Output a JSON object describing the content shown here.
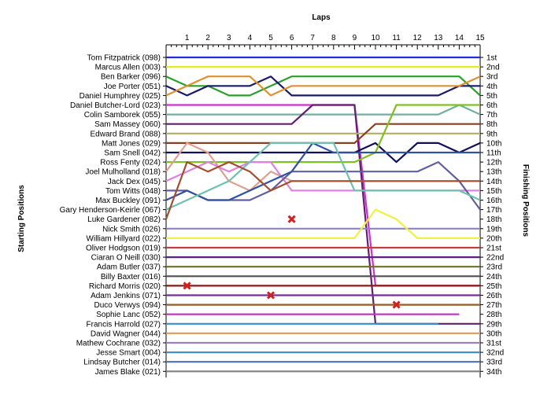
{
  "chart_data": {
    "type": "line",
    "title": "",
    "x_title": "Laps",
    "left_axis_title": "Starting Positions",
    "right_axis_title": "Finishing Positions",
    "laps": [
      1,
      2,
      3,
      4,
      5,
      6,
      7,
      8,
      9,
      10,
      11,
      12,
      13,
      14,
      15
    ],
    "x_range": [
      0,
      15
    ],
    "y_range": [
      1,
      34
    ],
    "y_inverted": true,
    "grid": false,
    "finishing_labels": [
      "1st",
      "2nd",
      "3rd",
      "4th",
      "5th",
      "6th",
      "7th",
      "8th",
      "9th",
      "10th",
      "11th",
      "12th",
      "13th",
      "14th",
      "15th",
      "16th",
      "17th",
      "18th",
      "19th",
      "20th",
      "21st",
      "22nd",
      "23rd",
      "24th",
      "25th",
      "26th",
      "27th",
      "28th",
      "29th",
      "30th",
      "31st",
      "32nd",
      "33rd",
      "34th"
    ],
    "series": [
      {
        "name": "Tom Fitzpatrick (098)",
        "color": "#2a2ad0",
        "positions": [
          1,
          1,
          1,
          1,
          1,
          1,
          1,
          1,
          1,
          1,
          1,
          1,
          1,
          1,
          1,
          1
        ]
      },
      {
        "name": "Marcus Allen (003)",
        "color": "#e8e82a",
        "positions": [
          2,
          2,
          2,
          2,
          2,
          2,
          2,
          2,
          2,
          2,
          2,
          2,
          2,
          2,
          2,
          2
        ]
      },
      {
        "name": "Ben Barker (096)",
        "color": "#2aa02a",
        "positions": [
          3,
          4,
          4,
          5,
          5,
          4,
          3,
          3,
          3,
          3,
          3,
          3,
          3,
          3,
          3,
          5
        ]
      },
      {
        "name": "Joe Porter (051)",
        "color": "#1a1a6a",
        "positions": [
          4,
          5,
          4,
          4,
          4,
          3,
          5,
          5,
          5,
          5,
          5,
          5,
          5,
          5,
          4,
          4
        ]
      },
      {
        "name": "Daniel Humphrey (025)",
        "color": "#e09030",
        "positions": [
          5,
          4,
          3,
          3,
          3,
          5,
          4,
          4,
          4,
          4,
          4,
          4,
          4,
          4,
          4,
          3
        ]
      },
      {
        "name": "Daniel Butcher-Lord (023)",
        "color": "#d030d0",
        "positions": [
          6,
          6,
          6,
          6,
          6,
          6,
          6,
          6,
          6,
          6,
          25,
          25,
          25,
          25,
          25,
          25
        ]
      },
      {
        "name": "Colin Samborek (055)",
        "color": "#70b0a0",
        "positions": [
          7,
          7,
          7,
          7,
          7,
          7,
          7,
          7,
          7,
          7,
          7,
          7,
          7,
          7,
          6,
          7
        ]
      },
      {
        "name": "Sam Massey (060)",
        "color": "#602070",
        "positions": [
          8,
          8,
          8,
          8,
          8,
          8,
          8,
          6,
          6,
          6,
          29,
          29,
          29,
          29,
          29,
          29
        ]
      },
      {
        "name": "Edward Brand (088)",
        "color": "#b0b060",
        "positions": [
          9,
          9,
          9,
          9,
          9,
          9,
          9,
          9,
          9,
          9,
          9,
          9,
          9,
          9,
          9,
          9
        ]
      },
      {
        "name": "Matt Jones (029)",
        "color": "#8a4020",
        "positions": [
          10,
          10,
          10,
          10,
          10,
          10,
          10,
          10,
          10,
          10,
          8,
          8,
          8,
          8,
          8,
          8
        ]
      },
      {
        "name": "Sam Snell (042)",
        "color": "#10105a",
        "positions": [
          11,
          11,
          11,
          11,
          11,
          11,
          11,
          11,
          11,
          11,
          10,
          12,
          10,
          10,
          11,
          10
        ]
      },
      {
        "name": "Ross Fenty (024)",
        "color": "#80c020",
        "positions": [
          12,
          12,
          12,
          12,
          12,
          12,
          12,
          12,
          12,
          12,
          11,
          6,
          6,
          6,
          6,
          6
        ]
      },
      {
        "name": "Joel Mulholland (018)",
        "color": "#e0a090",
        "positions": [
          13,
          10,
          11,
          14,
          15,
          13,
          14,
          14,
          14,
          14,
          14,
          14,
          14,
          14,
          14,
          14
        ]
      },
      {
        "name": "Jack Dex (045)",
        "color": "#e080e0",
        "positions": [
          14,
          13,
          12,
          13,
          12,
          12,
          15,
          15,
          15,
          15,
          15,
          15,
          15,
          15,
          15,
          15
        ]
      },
      {
        "name": "Tom Witts (048)",
        "color": "#6060a0",
        "positions": [
          15,
          15,
          16,
          16,
          16,
          15,
          13,
          13,
          13,
          13,
          13,
          13,
          13,
          12,
          14,
          17
        ]
      },
      {
        "name": "Max Buckley (091)",
        "color": "#3050a0",
        "positions": [
          16,
          15,
          16,
          16,
          15,
          14,
          13,
          10,
          11,
          11,
          11,
          11,
          11,
          11,
          11,
          11
        ]
      },
      {
        "name": "Gary Henderson-Keirle (067)",
        "color": "#70c0b0",
        "positions": [
          17,
          16,
          15,
          14,
          12,
          10,
          10,
          10,
          10,
          15,
          15,
          15,
          15,
          15,
          15,
          16
        ]
      },
      {
        "name": "Luke Gardener (082)",
        "color": "#a05030",
        "positions": [
          18,
          12,
          13,
          12,
          13,
          15,
          14,
          14,
          14,
          14,
          14,
          14,
          14,
          14,
          14,
          14
        ]
      },
      {
        "name": "Nick Smith (026)",
        "color": "#9080c0",
        "positions": [
          19,
          19,
          19,
          19,
          19,
          19,
          19,
          19,
          19,
          19,
          19,
          19,
          19,
          19,
          19,
          19
        ]
      },
      {
        "name": "William Hillyard (022)",
        "color": "#f0f040",
        "positions": [
          20,
          20,
          20,
          20,
          20,
          20,
          20,
          20,
          20,
          20,
          17,
          18,
          20,
          20,
          20,
          20
        ]
      },
      {
        "name": "Oliver Hodgson (019)",
        "color": "#c04040",
        "positions": [
          21,
          21,
          21,
          21,
          21,
          21,
          21,
          21,
          21,
          21,
          21,
          21,
          21,
          21,
          21,
          21
        ]
      },
      {
        "name": "Ciaran O Neill (030)",
        "color": "#602080",
        "positions": [
          22,
          22,
          22,
          22,
          22,
          22,
          22,
          22,
          22,
          22,
          22,
          22,
          22,
          22,
          22,
          22
        ]
      },
      {
        "name": "Adam Butler (037)",
        "color": "#707020",
        "positions": [
          23,
          23,
          23,
          23,
          23,
          23,
          23,
          23,
          23,
          23,
          23,
          23,
          23,
          23,
          23,
          23
        ]
      },
      {
        "name": "Billy Baxter (016)",
        "color": "#505050",
        "positions": [
          24,
          24,
          24,
          24,
          24,
          24,
          24,
          24,
          24,
          24,
          24,
          24,
          24,
          24,
          24,
          24
        ]
      },
      {
        "name": "Richard Morris (020)",
        "color": "#8a1a1a",
        "positions": [
          25,
          25,
          25,
          25,
          25,
          25,
          25,
          25,
          25,
          25,
          25,
          25,
          25,
          25,
          25,
          25
        ]
      },
      {
        "name": "Adam Jenkins (071)",
        "color": "#7a2a9a",
        "positions": [
          26,
          26,
          26,
          26,
          26,
          26,
          26,
          26,
          26,
          26,
          26,
          26,
          26,
          26,
          26,
          26
        ]
      },
      {
        "name": "Duco Verwys (094)",
        "color": "#9a5a20",
        "positions": [
          27,
          27,
          27,
          27,
          27,
          27,
          27,
          27,
          27,
          27,
          27,
          27,
          27,
          27,
          27,
          27
        ]
      },
      {
        "name": "Sophie Lanc (052)",
        "color": "#c030c0",
        "positions": [
          28,
          28,
          28,
          28,
          28,
          28,
          28,
          28,
          28,
          28,
          28,
          28,
          28,
          28,
          28
        ]
      },
      {
        "name": "Francis Harrold (027)",
        "color": "#3090d0",
        "positions": [
          29,
          29,
          29,
          29,
          29,
          29,
          29,
          29,
          29,
          29,
          29,
          29,
          29,
          29
        ]
      },
      {
        "name": "David Wagner (044)",
        "color": "#e0a060",
        "positions": [
          30,
          30,
          30,
          30,
          30,
          30,
          30,
          30,
          30,
          30,
          30,
          30,
          30,
          30,
          30,
          30
        ]
      },
      {
        "name": "Mathew Cochrane (032)",
        "color": "#a080c0",
        "positions": [
          31,
          31,
          31,
          31,
          31,
          31,
          31,
          31,
          31,
          31,
          31,
          31,
          31,
          31,
          31,
          31
        ]
      },
      {
        "name": "Jesse Smart (004)",
        "color": "#4090d0",
        "positions": [
          32,
          32,
          32,
          32,
          32,
          32,
          32,
          32,
          32,
          32,
          32,
          32,
          32,
          32,
          32,
          32
        ]
      },
      {
        "name": "Lindsay Butcher (014)",
        "color": "#5070b0",
        "positions": [
          33,
          33,
          33,
          33,
          33,
          33,
          33,
          33,
          33,
          33,
          33,
          33,
          33,
          33,
          33,
          33
        ]
      },
      {
        "name": "James Blake (021)",
        "color": "#808080",
        "positions": [
          34,
          34,
          34,
          34,
          34,
          34,
          34,
          34,
          34,
          34,
          34,
          34,
          34,
          34,
          34,
          34
        ]
      }
    ],
    "retirements": [
      {
        "driver": "Richard Morris (020)",
        "lap": 1,
        "position": 25
      },
      {
        "driver": "Adam Jenkins (071)",
        "lap": 5,
        "position": 26
      },
      {
        "driver": "Luke Gardener (082)",
        "lap": 6,
        "position": 18
      },
      {
        "driver": "Duco Verwys (094)",
        "lap": 11,
        "position": 27
      }
    ]
  }
}
